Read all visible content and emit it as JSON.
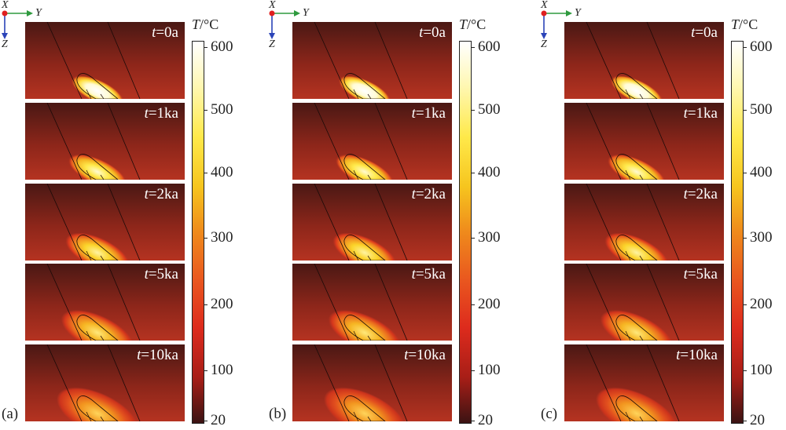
{
  "axes": {
    "x": "X",
    "y": "Y",
    "z": "Z"
  },
  "colorbar": {
    "title_var": "T",
    "title_unit": "/°C",
    "ticks": [
      "600",
      "500",
      "400",
      "300",
      "200",
      "100",
      "20"
    ]
  },
  "time_labels": [
    {
      "var": "t",
      "val": "=0a"
    },
    {
      "var": "t",
      "val": "=1ka"
    },
    {
      "var": "t",
      "val": "=2ka"
    },
    {
      "var": "t",
      "val": "=5ka"
    },
    {
      "var": "t",
      "val": "=10ka"
    }
  ],
  "panels": [
    {
      "label": "(a)"
    },
    {
      "label": "(b)"
    },
    {
      "label": "(c)"
    }
  ],
  "colors": {
    "background_dark": "#5a1d16",
    "background_mid": "#a8301f",
    "hot": "#ffffff",
    "mid": "#ffe94a"
  }
}
